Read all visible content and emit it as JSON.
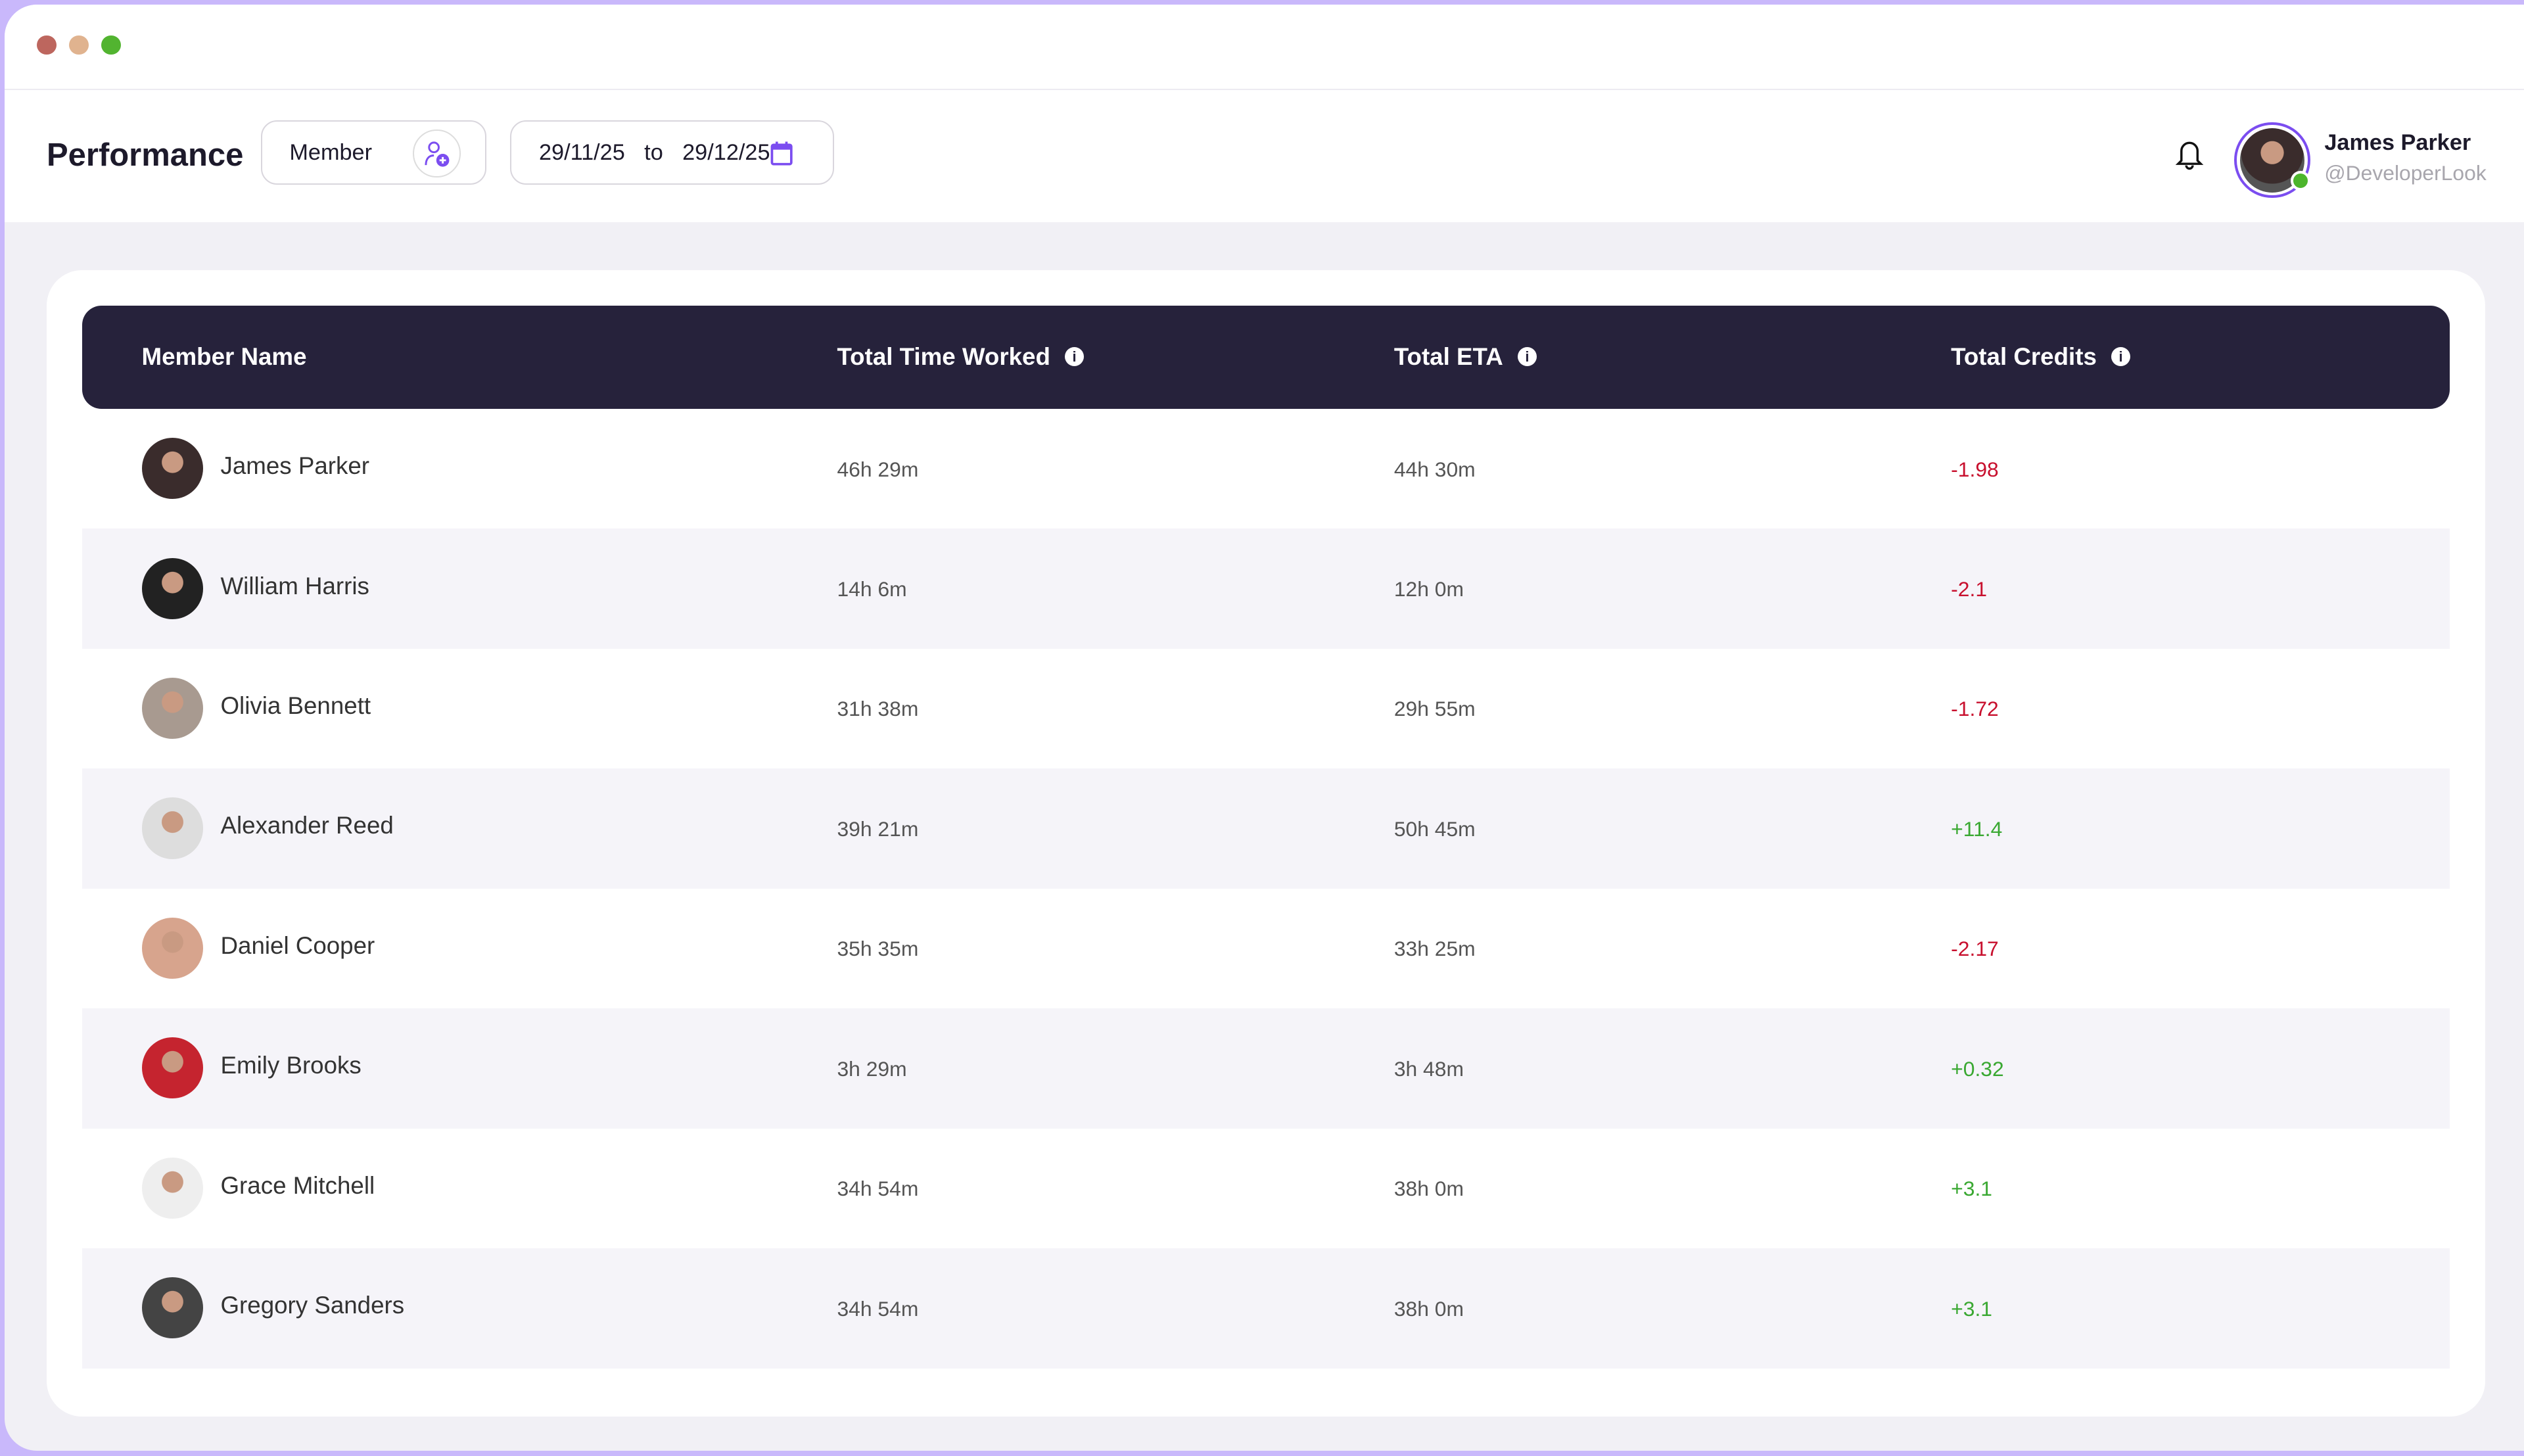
{
  "header": {
    "title": "Performance",
    "member_filter": "Member",
    "date_from": "29/11/25",
    "date_sep": "to",
    "date_to": "29/12/25",
    "user": {
      "name": "James Parker",
      "handle": "@DeveloperLook"
    }
  },
  "table": {
    "columns": [
      "Member Name",
      "Total Time Worked",
      "Total ETA",
      "Total Credits"
    ],
    "rows": [
      {
        "name": "James Parker",
        "worked": "46h 29m",
        "eta": "44h 30m",
        "credits": "-1.98"
      },
      {
        "name": "William Harris",
        "worked": "14h 6m",
        "eta": "12h 0m",
        "credits": "-2.1"
      },
      {
        "name": "Olivia Bennett",
        "worked": "31h 38m",
        "eta": "29h 55m",
        "credits": "-1.72"
      },
      {
        "name": "Alexander Reed",
        "worked": "39h 21m",
        "eta": "50h 45m",
        "credits": "+11.4"
      },
      {
        "name": "Daniel Cooper",
        "worked": "35h 35m",
        "eta": "33h 25m",
        "credits": "-2.17"
      },
      {
        "name": "Emily Brooks",
        "worked": "3h 29m",
        "eta": "3h 48m",
        "credits": "+0.32"
      },
      {
        "name": "Grace Mitchell",
        "worked": "34h 54m",
        "eta": "38h 0m",
        "credits": "+3.1"
      },
      {
        "name": "Gregory Sanders",
        "worked": "34h 54m",
        "eta": "38h 0m",
        "credits": "+3.1"
      }
    ]
  },
  "colors": {
    "accent": "#7b4df0",
    "header_bg": "#26223b",
    "negative": "#c8102e",
    "positive": "#3aa832"
  }
}
